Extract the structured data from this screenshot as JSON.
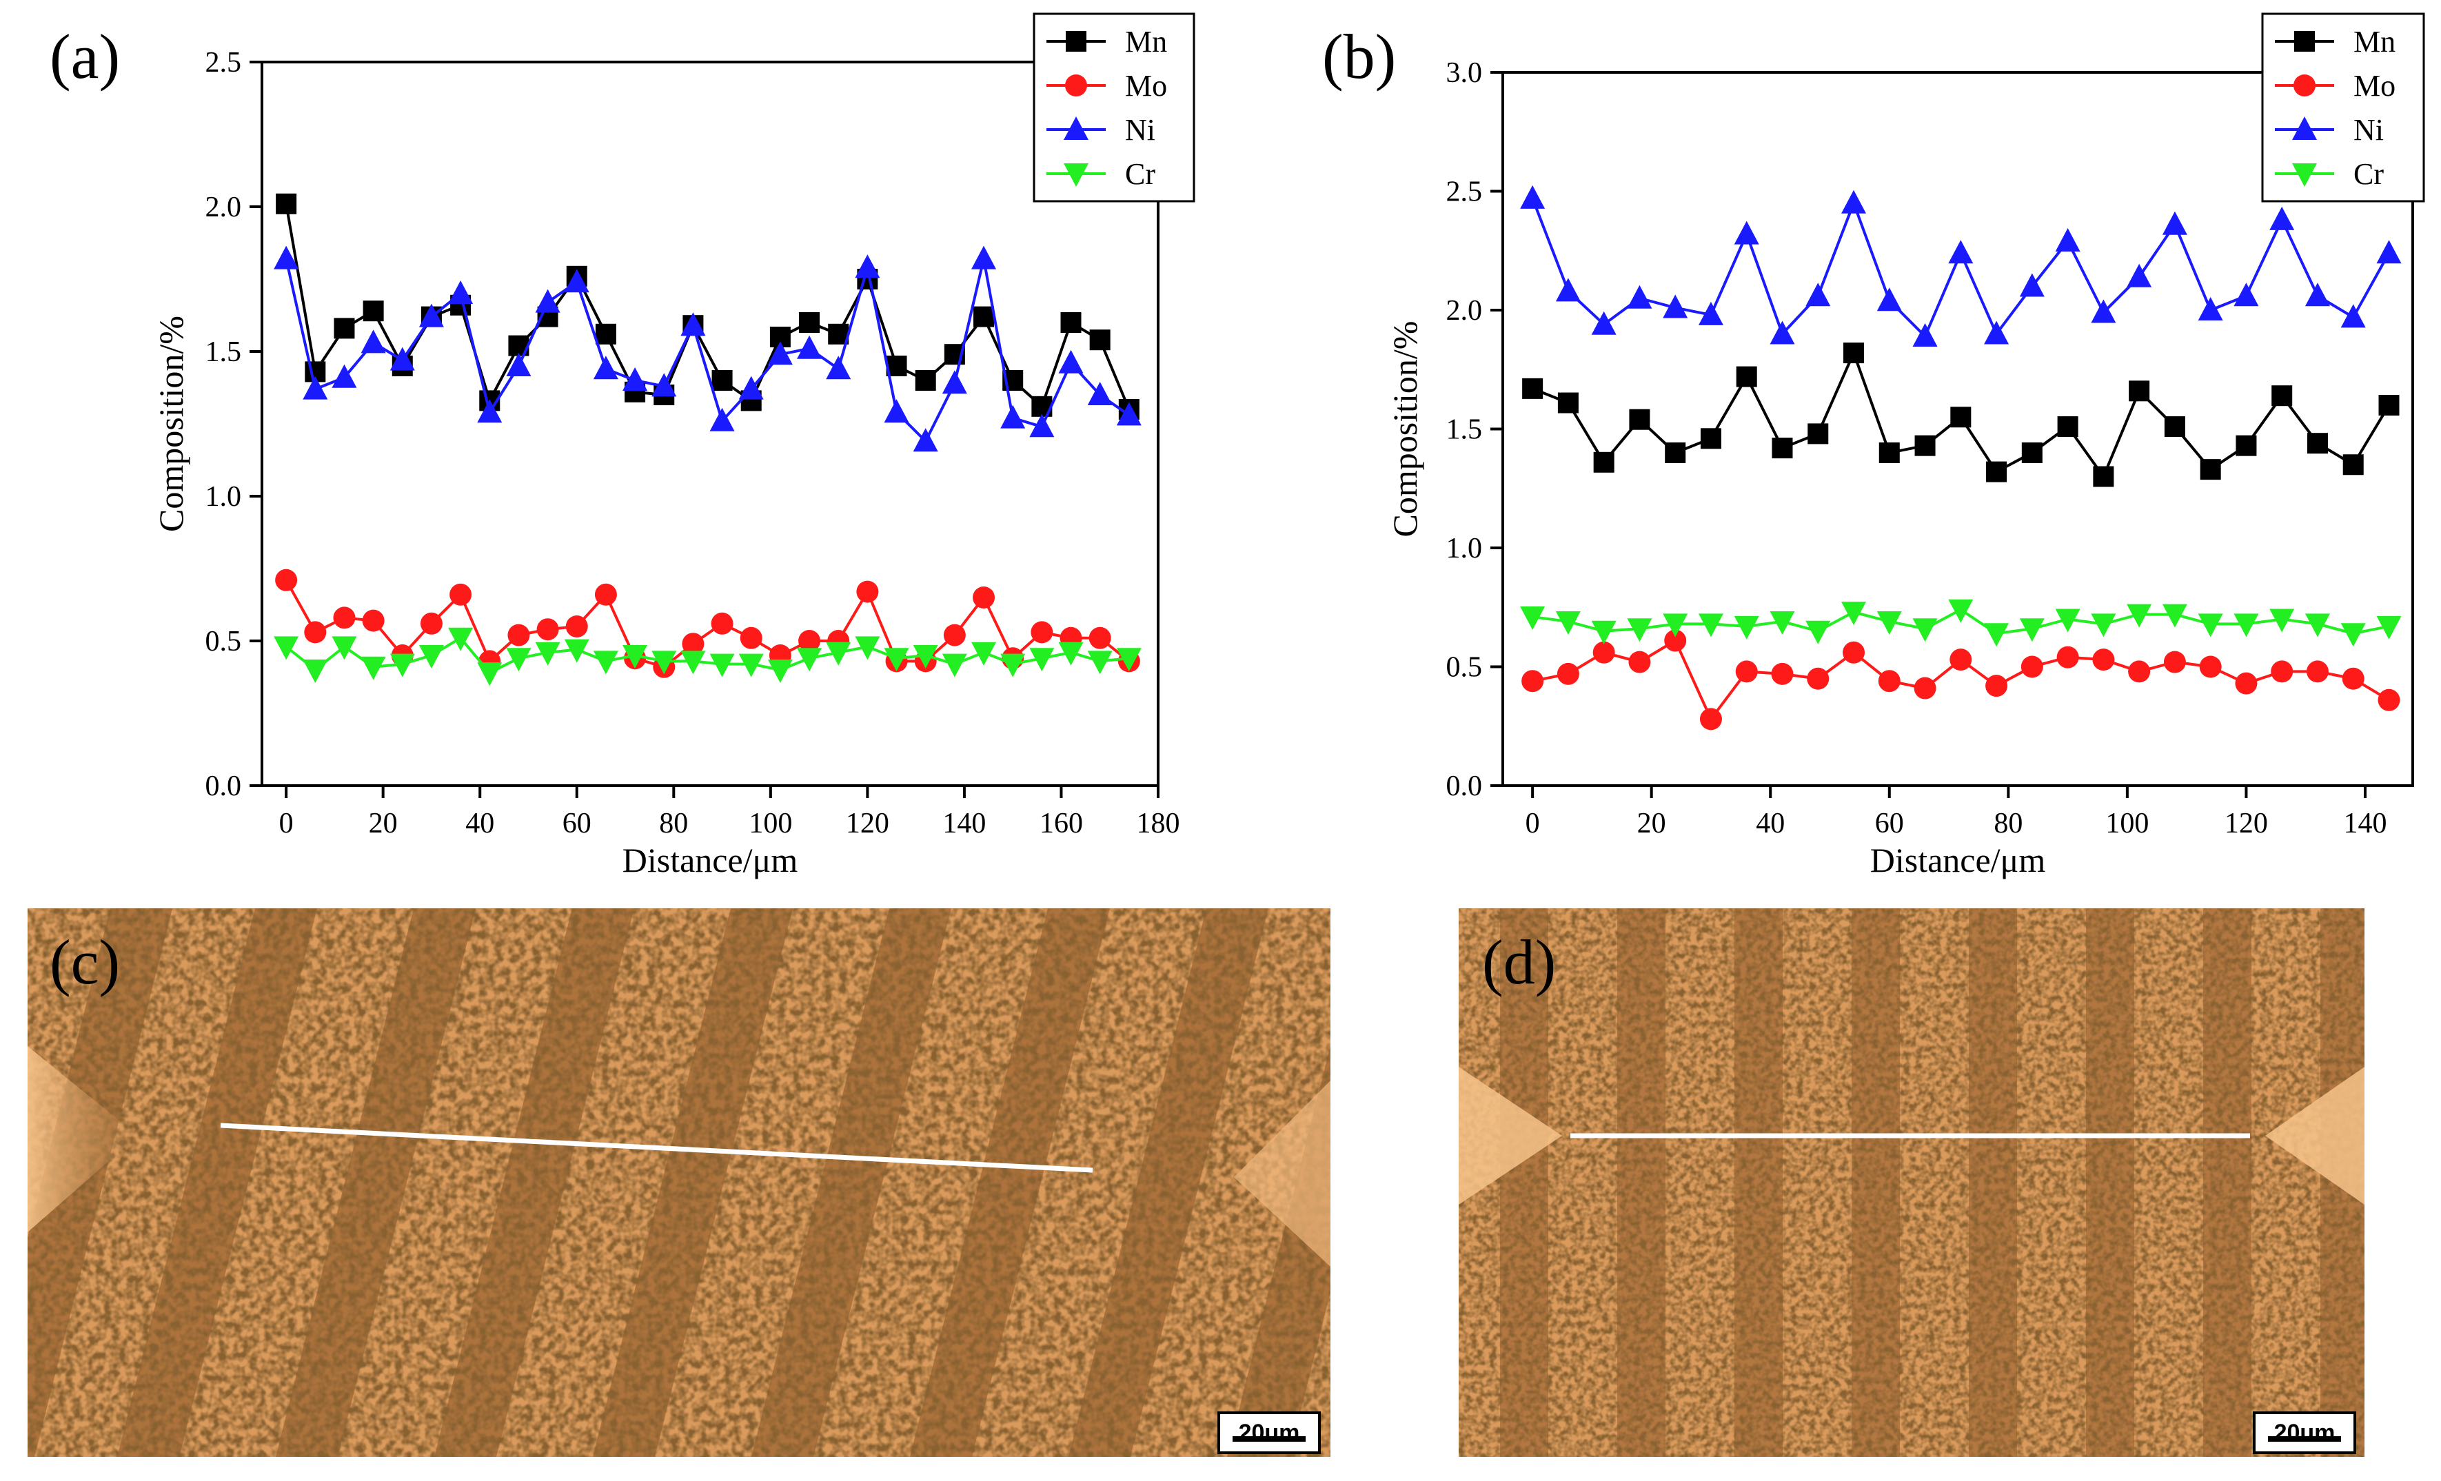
{
  "figure": {
    "panels": [
      {
        "id": "a",
        "label": "(a)"
      },
      {
        "id": "b",
        "label": "(b)"
      },
      {
        "id": "c",
        "label": "(c)",
        "scale_bar": "20um"
      },
      {
        "id": "d",
        "label": "(d)",
        "scale_bar": "20um"
      }
    ]
  },
  "colors": {
    "Mn": "#000000",
    "Mo": "#ff1a1a",
    "Ni": "#1a1aff",
    "Cr": "#22ee22",
    "micrograph_base": "#d99a5c",
    "micrograph_dark": "#6b3a16"
  },
  "chart_data": [
    {
      "panel": "a",
      "type": "line",
      "title": "",
      "xlabel": "Distance/μm",
      "ylabel": "Composition/%",
      "xlim": [
        -5,
        180
      ],
      "ylim": [
        0,
        2.5
      ],
      "xticks": [
        0,
        20,
        40,
        60,
        80,
        100,
        120,
        140,
        160,
        180
      ],
      "yticks": [
        0.0,
        0.5,
        1.0,
        1.5,
        2.0,
        2.5
      ],
      "legend_position": "top-right",
      "x": [
        0,
        6,
        12,
        18,
        24,
        30,
        36,
        42,
        48,
        54,
        60,
        66,
        72,
        78,
        84,
        90,
        96,
        102,
        108,
        114,
        120,
        126,
        132,
        138,
        144,
        150,
        156,
        162,
        168,
        174
      ],
      "series": [
        {
          "name": "Mn",
          "marker": "square",
          "values": [
            2.01,
            1.43,
            1.58,
            1.64,
            1.45,
            1.62,
            1.66,
            1.33,
            1.52,
            1.62,
            1.76,
            1.56,
            1.36,
            1.35,
            1.59,
            1.4,
            1.33,
            1.55,
            1.6,
            1.56,
            1.75,
            1.45,
            1.4,
            1.49,
            1.62,
            1.4,
            1.31,
            1.6,
            1.54,
            1.3
          ]
        },
        {
          "name": "Mo",
          "marker": "circle",
          "values": [
            0.71,
            0.53,
            0.58,
            0.57,
            0.45,
            0.56,
            0.66,
            0.43,
            0.52,
            0.54,
            0.55,
            0.66,
            0.44,
            0.41,
            0.49,
            0.56,
            0.51,
            0.45,
            0.5,
            0.5,
            0.67,
            0.43,
            0.43,
            0.52,
            0.65,
            0.44,
            0.53,
            0.51,
            0.51,
            0.43
          ]
        },
        {
          "name": "Ni",
          "marker": "triangle-up",
          "values": [
            1.82,
            1.37,
            1.41,
            1.53,
            1.47,
            1.62,
            1.7,
            1.29,
            1.45,
            1.67,
            1.74,
            1.44,
            1.4,
            1.38,
            1.59,
            1.26,
            1.37,
            1.49,
            1.51,
            1.44,
            1.79,
            1.29,
            1.19,
            1.39,
            1.82,
            1.27,
            1.24,
            1.46,
            1.35,
            1.28
          ]
        },
        {
          "name": "Cr",
          "marker": "triangle-down",
          "values": [
            0.48,
            0.4,
            0.48,
            0.41,
            0.42,
            0.45,
            0.51,
            0.39,
            0.44,
            0.46,
            0.47,
            0.43,
            0.45,
            0.43,
            0.43,
            0.42,
            0.42,
            0.4,
            0.44,
            0.46,
            0.48,
            0.44,
            0.45,
            0.42,
            0.46,
            0.42,
            0.44,
            0.46,
            0.43,
            0.44
          ]
        }
      ]
    },
    {
      "panel": "b",
      "type": "line",
      "title": "",
      "xlabel": "Distance/μm",
      "ylabel": "Composition/%",
      "xlim": [
        -5,
        148
      ],
      "ylim": [
        0,
        3.0
      ],
      "xticks": [
        0,
        20,
        40,
        60,
        80,
        100,
        120,
        140
      ],
      "yticks": [
        0.0,
        0.5,
        1.0,
        1.5,
        2.0,
        2.5,
        3.0
      ],
      "legend_position": "top-right",
      "x": [
        0,
        6,
        12,
        18,
        24,
        30,
        36,
        42,
        48,
        54,
        60,
        66,
        72,
        78,
        84,
        90,
        96,
        102,
        108,
        114,
        120,
        126,
        132,
        138,
        144
      ],
      "series": [
        {
          "name": "Mn",
          "marker": "square",
          "values": [
            1.67,
            1.61,
            1.36,
            1.54,
            1.4,
            1.46,
            1.72,
            1.42,
            1.48,
            1.82,
            1.4,
            1.43,
            1.55,
            1.32,
            1.4,
            1.51,
            1.3,
            1.66,
            1.51,
            1.33,
            1.43,
            1.64,
            1.44,
            1.35,
            1.6
          ]
        },
        {
          "name": "Mo",
          "marker": "circle",
          "values": [
            0.44,
            0.47,
            0.56,
            0.52,
            0.61,
            0.28,
            0.48,
            0.47,
            0.45,
            0.56,
            0.44,
            0.41,
            0.53,
            0.42,
            0.5,
            0.54,
            0.53,
            0.48,
            0.52,
            0.5,
            0.43,
            0.48,
            0.48,
            0.45,
            0.36
          ]
        },
        {
          "name": "Ni",
          "marker": "triangle-up",
          "values": [
            2.47,
            2.08,
            1.94,
            2.05,
            2.01,
            1.98,
            2.32,
            1.9,
            2.06,
            2.45,
            2.04,
            1.89,
            2.24,
            1.9,
            2.1,
            2.29,
            1.99,
            2.14,
            2.36,
            2.0,
            2.06,
            2.38,
            2.06,
            1.97,
            2.24
          ]
        },
        {
          "name": "Cr",
          "marker": "triangle-down",
          "values": [
            0.71,
            0.69,
            0.65,
            0.66,
            0.68,
            0.68,
            0.67,
            0.69,
            0.65,
            0.73,
            0.69,
            0.66,
            0.74,
            0.64,
            0.66,
            0.7,
            0.68,
            0.72,
            0.72,
            0.68,
            0.68,
            0.7,
            0.68,
            0.64,
            0.67
          ]
        }
      ]
    }
  ]
}
